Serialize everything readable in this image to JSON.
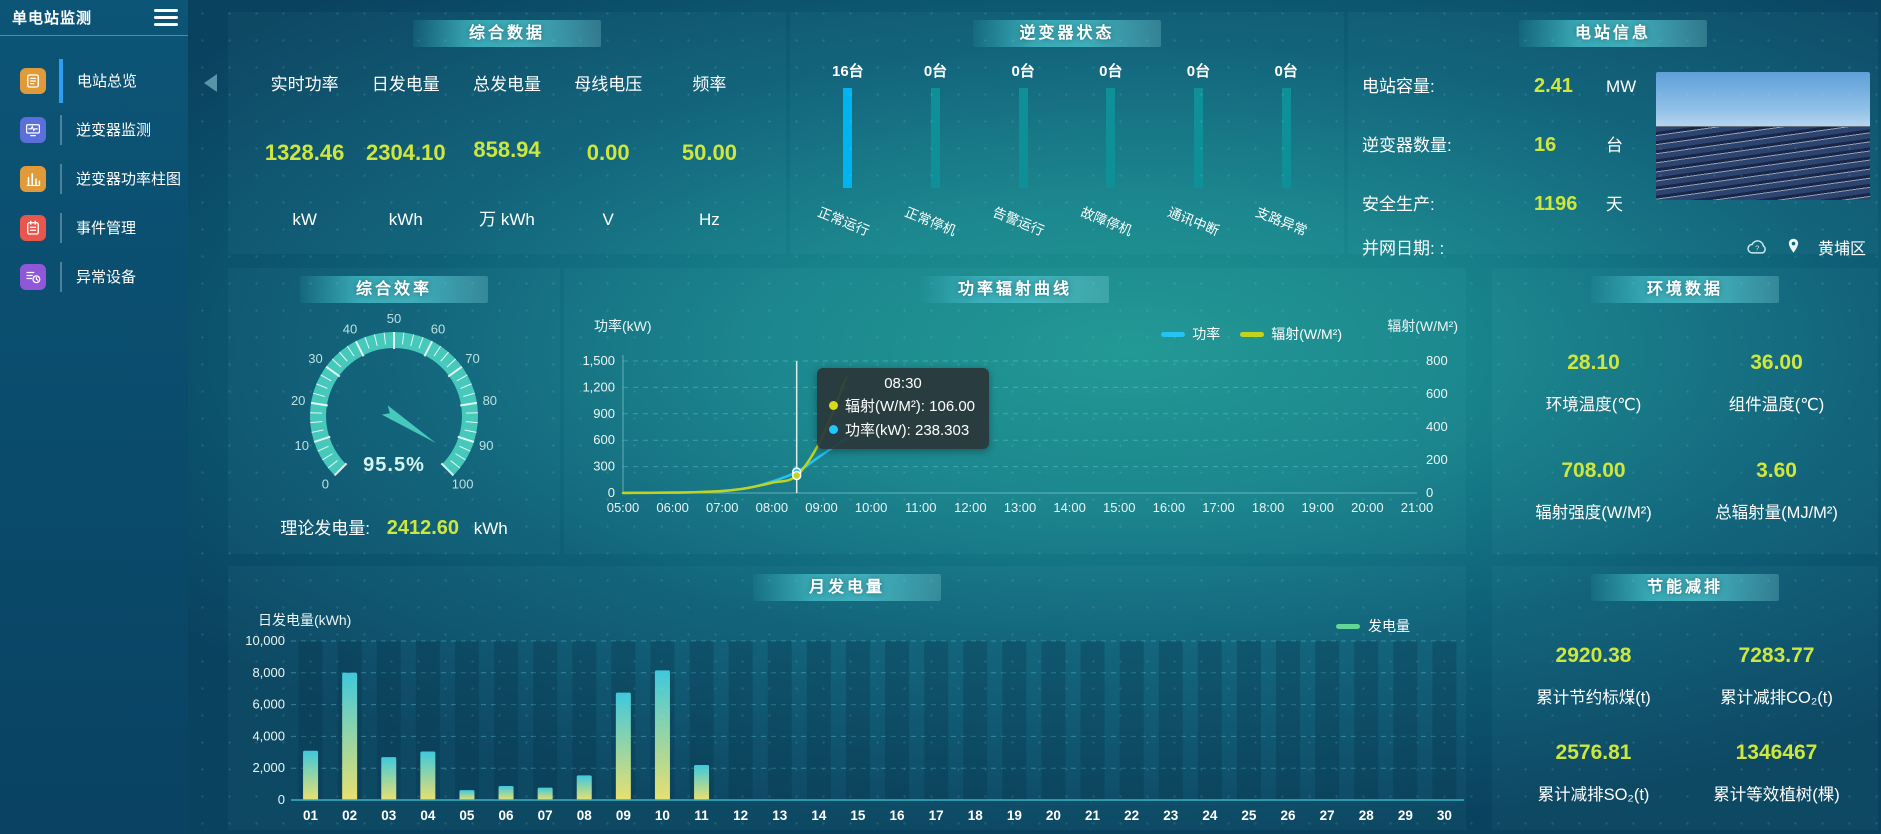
{
  "app": {
    "title": "单电站监测"
  },
  "sidebar": {
    "items": [
      {
        "label": "电站总览",
        "active": true
      },
      {
        "label": "逆变器监测",
        "active": false
      },
      {
        "label": "逆变器功率柱图",
        "active": false
      },
      {
        "label": "事件管理",
        "active": false
      },
      {
        "label": "异常设备",
        "active": false
      }
    ]
  },
  "summary": {
    "title": "综合数据",
    "metrics": [
      {
        "label": "实时功率",
        "value": "1328.46",
        "unit": "kW"
      },
      {
        "label": "日发电量",
        "value": "2304.10",
        "unit": "kWh"
      },
      {
        "label": "总发电量",
        "value": "858.94",
        "unit": "万 kWh"
      },
      {
        "label": "母线电压",
        "value": "0.00",
        "unit": "V"
      },
      {
        "label": "频率",
        "value": "50.00",
        "unit": "Hz"
      }
    ]
  },
  "inverter_status": {
    "title": "逆变器状态",
    "items": [
      {
        "count": "16台",
        "label": "正常运行",
        "highlight": true
      },
      {
        "count": "0台",
        "label": "正常停机",
        "highlight": false
      },
      {
        "count": "0台",
        "label": "告警运行",
        "highlight": false
      },
      {
        "count": "0台",
        "label": "故障停机",
        "highlight": false
      },
      {
        "count": "0台",
        "label": "通讯中断",
        "highlight": false
      },
      {
        "count": "0台",
        "label": "支路异常",
        "highlight": false
      }
    ],
    "colors": {
      "highlight": "#00b4f0",
      "normal": "#0f9099"
    }
  },
  "station_info": {
    "title": "电站信息",
    "rows": [
      {
        "label": "电站容量:",
        "value": "2.41",
        "unit": "MW"
      },
      {
        "label": "逆变器数量:",
        "value": "16",
        "unit": "台"
      },
      {
        "label": "安全生产:",
        "value": "1196",
        "unit": "天"
      }
    ],
    "grid_date_label": "并网日期: :",
    "location": "黄埔区"
  },
  "efficiency": {
    "title": "综合效率",
    "value_text": "95.5%",
    "theory_label": "理论发电量:",
    "theory_value": "2412.60",
    "theory_unit": "kWh"
  },
  "power_curve": {
    "title": "功率辐射曲线",
    "tooltip": {
      "title": "08:30",
      "rows": [
        {
          "label": "辐射(W/M²): 106.00",
          "color": "#d6db1c"
        },
        {
          "label": "功率(kW): 238.303",
          "color": "#1ec8ff"
        }
      ]
    }
  },
  "environment": {
    "title": "环境数据",
    "cells": [
      {
        "value": "28.10",
        "label": "环境温度(℃)"
      },
      {
        "value": "36.00",
        "label": "组件温度(℃)"
      },
      {
        "value": "708.00",
        "label": "辐射强度(W/M²)"
      },
      {
        "value": "3.60",
        "label": "总辐射量(MJ/M²)"
      }
    ]
  },
  "monthly": {
    "title": "月发电量"
  },
  "savings": {
    "title": "节能减排",
    "cells": [
      {
        "value": "2920.38",
        "label": "累计节约标煤(t)"
      },
      {
        "value": "7283.77",
        "label": "累计减排CO₂(t)"
      },
      {
        "value": "2576.81",
        "label": "累计减排SO₂(t)"
      },
      {
        "value": "1346467",
        "label": "累计等效植树(棵)"
      }
    ]
  },
  "chart_data": [
    {
      "type": "gauge",
      "title": "综合效率",
      "value": 95.5,
      "min": 0,
      "max": 100,
      "unit": "%",
      "major_ticks": [
        0,
        10,
        20,
        30,
        40,
        50,
        60,
        70,
        80,
        90,
        100
      ],
      "color": "#46c8bb"
    },
    {
      "type": "line",
      "title": "功率辐射曲线",
      "x_labels": [
        "05:00",
        "06:00",
        "07:00",
        "08:00",
        "09:00",
        "10:00",
        "11:00",
        "12:00",
        "13:00",
        "14:00",
        "15:00",
        "16:00",
        "17:00",
        "18:00",
        "19:00",
        "20:00",
        "21:00"
      ],
      "x_range": [
        5,
        21
      ],
      "left_axis": {
        "name": "功率(kW)",
        "max": 1500,
        "ticks": [
          0,
          300,
          600,
          900,
          1200,
          1500
        ]
      },
      "right_axis": {
        "name": "辐射(W/M²)",
        "max": 800,
        "ticks": [
          0,
          200,
          400,
          600,
          800
        ]
      },
      "series": [
        {
          "name": "功率",
          "color": "#25c3f2",
          "axis": "left",
          "points": [
            [
              5,
              2
            ],
            [
              5.5,
              3
            ],
            [
              6,
              5
            ],
            [
              6.5,
              10
            ],
            [
              7,
              22
            ],
            [
              7.5,
              55
            ],
            [
              8,
              130
            ],
            [
              8.5,
              238.3
            ],
            [
              9,
              430
            ],
            [
              9.5,
              620
            ]
          ]
        },
        {
          "name": "辐射(W/M²)",
          "color": "#c2d31d",
          "axis": "right",
          "points": [
            [
              5,
              0
            ],
            [
              5.5,
              1
            ],
            [
              6,
              2
            ],
            [
              6.5,
              5
            ],
            [
              7,
              12
            ],
            [
              7.5,
              30
            ],
            [
              8,
              62
            ],
            [
              8.5,
              106
            ],
            [
              9,
              330
            ],
            [
              9.5,
              700
            ]
          ]
        }
      ],
      "pointer_x": 8.5,
      "pointer_values": {
        "功率": 238.303,
        "辐射": 106.0
      },
      "legend_position": "top-right",
      "grid": "dashed"
    },
    {
      "type": "bar",
      "title": "月发电量",
      "ylabel": "日发电量(kWh)",
      "ylim": [
        0,
        10000
      ],
      "y_ticks": [
        0,
        2000,
        4000,
        6000,
        8000,
        10000
      ],
      "categories": [
        "01",
        "02",
        "03",
        "04",
        "05",
        "06",
        "07",
        "08",
        "09",
        "10",
        "11",
        "12",
        "13",
        "14",
        "15",
        "16",
        "17",
        "18",
        "19",
        "20",
        "21",
        "22",
        "23",
        "24",
        "25",
        "26",
        "27",
        "28",
        "29",
        "30"
      ],
      "values": [
        3100,
        8000,
        2700,
        3050,
        620,
        880,
        780,
        1550,
        6750,
        8150,
        2200,
        0,
        0,
        0,
        0,
        0,
        0,
        0,
        0,
        0,
        0,
        0,
        0,
        0,
        0,
        0,
        0,
        0,
        0,
        0
      ],
      "legend": "发电量",
      "legend_color": "#63d695",
      "bar_gradient": [
        "#3fc8dc",
        "#e8e070"
      ]
    },
    {
      "type": "bar",
      "title": "逆变器状态",
      "categories": [
        "正常运行",
        "正常停机",
        "告警运行",
        "故障停机",
        "通讯中断",
        "支路异常"
      ],
      "values": [
        16,
        0,
        0,
        0,
        0,
        0
      ],
      "unit": "台"
    }
  ]
}
